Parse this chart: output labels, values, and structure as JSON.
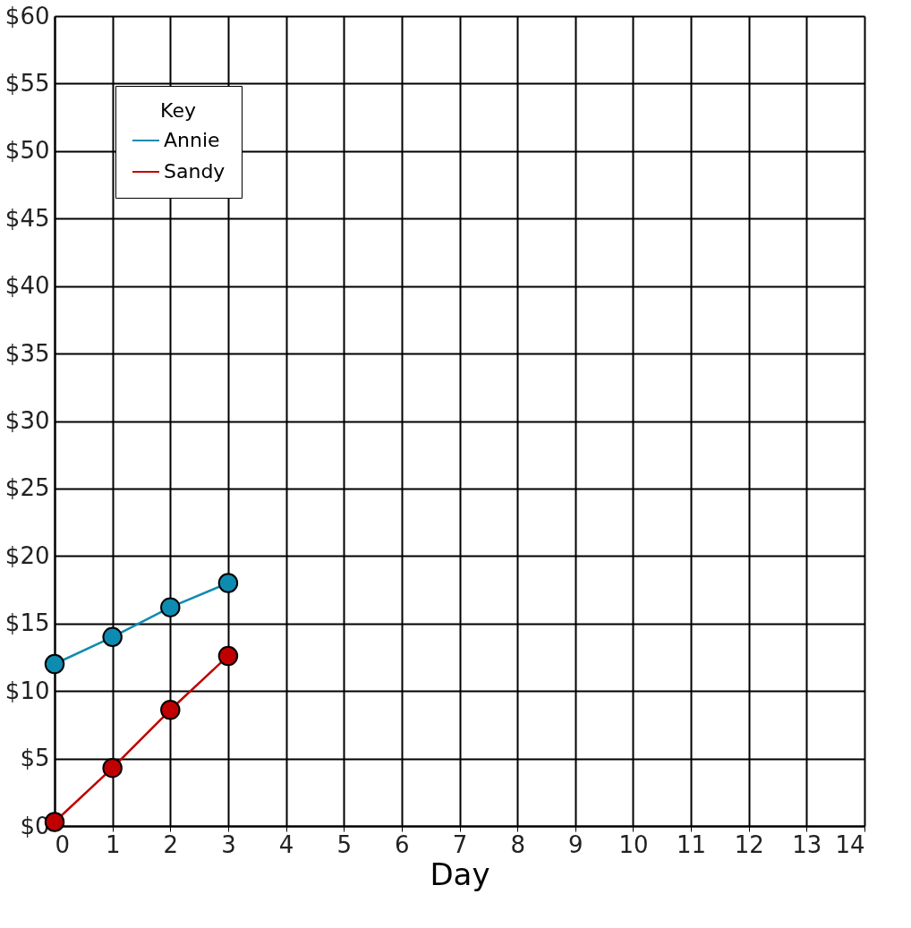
{
  "chart_data": {
    "type": "line",
    "xlabel": "Day",
    "legend_title": "Key",
    "legend": "top left",
    "grid": true,
    "marker": "circle",
    "line_style": "solid",
    "x": [
      0,
      1,
      2,
      3
    ],
    "series": [
      {
        "name": "Annie",
        "color": "#0e8bb0",
        "values": [
          12,
          14,
          16.2,
          18
        ]
      },
      {
        "name": "Sandy",
        "color": "#c00000",
        "values": [
          0.3,
          4.3,
          8.6,
          12.6
        ]
      }
    ],
    "xlim": [
      0,
      14
    ],
    "xticks": [
      0,
      1,
      2,
      3,
      4,
      5,
      6,
      7,
      8,
      9,
      10,
      11,
      12,
      13,
      14
    ],
    "ylim": [
      0,
      60
    ],
    "yticks": [
      {
        "value": 0,
        "label": "$0"
      },
      {
        "value": 5,
        "label": "$5"
      },
      {
        "value": 10,
        "label": "$10"
      },
      {
        "value": 15,
        "label": "$15"
      },
      {
        "value": 20,
        "label": "$20"
      },
      {
        "value": 25,
        "label": "$25"
      },
      {
        "value": 30,
        "label": "$30"
      },
      {
        "value": 35,
        "label": "$35"
      },
      {
        "value": 40,
        "label": "$40"
      },
      {
        "value": 45,
        "label": "$45"
      },
      {
        "value": 50,
        "label": "$50"
      },
      {
        "value": 55,
        "label": "$55"
      },
      {
        "value": 60,
        "label": "$60"
      }
    ]
  }
}
